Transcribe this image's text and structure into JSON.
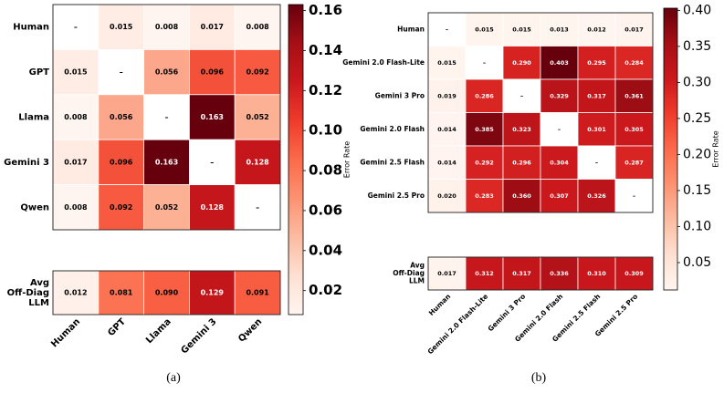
{
  "charts": [
    {
      "type": "heatmap",
      "caption": "(a)",
      "colormap": "Reds",
      "categories": [
        "Human",
        "GPT",
        "Llama",
        "Gemini 3",
        "Qwen"
      ],
      "values": [
        [
          null,
          0.015,
          0.008,
          0.017,
          0.008
        ],
        [
          0.015,
          null,
          0.056,
          0.096,
          0.092
        ],
        [
          0.008,
          0.056,
          null,
          0.163,
          0.052
        ],
        [
          0.017,
          0.096,
          0.163,
          null,
          0.128
        ],
        [
          0.008,
          0.092,
          0.052,
          0.128,
          null
        ]
      ],
      "value_labels": [
        [
          "–",
          "0.015",
          "0.008",
          "0.017",
          "0.008"
        ],
        [
          "0.015",
          "–",
          "0.056",
          "0.096",
          "0.092"
        ],
        [
          "0.008",
          "0.056",
          "–",
          "0.163",
          "0.052"
        ],
        [
          "0.017",
          "0.096",
          "0.163",
          "–",
          "0.128"
        ],
        [
          "0.008",
          "0.092",
          "0.052",
          "0.128",
          "–"
        ]
      ],
      "summary": {
        "label": [
          "Avg",
          "Off-Diag",
          "LLM"
        ],
        "values": [
          0.012,
          0.081,
          0.09,
          0.129,
          0.091
        ],
        "value_labels": [
          "0.012",
          "0.081",
          "0.090",
          "0.129",
          "0.091"
        ]
      },
      "colorbar": {
        "label": "Error Rate",
        "lim": [
          0.008,
          0.163
        ],
        "ticks": [
          0.02,
          0.04,
          0.06,
          0.08,
          {
            "value": 0.1,
            "label": "0.10"
          },
          0.12,
          0.14,
          0.16
        ]
      }
    },
    {
      "type": "heatmap",
      "caption": "(b)",
      "colormap": "Reds",
      "categories": [
        "Human",
        "Gemini 2.0 Flash-Lite",
        "Gemini 3 Pro",
        "Gemini 2.0 Flash",
        "Gemini 2.5 Flash",
        "Gemini 2.5 Pro"
      ],
      "values": [
        [
          null,
          0.015,
          0.015,
          0.013,
          0.012,
          0.017
        ],
        [
          0.015,
          null,
          0.29,
          0.403,
          0.295,
          0.284
        ],
        [
          0.019,
          0.286,
          null,
          0.329,
          0.317,
          0.361
        ],
        [
          0.014,
          0.385,
          0.323,
          null,
          0.301,
          0.305
        ],
        [
          0.014,
          0.292,
          0.296,
          0.304,
          null,
          0.287
        ],
        [
          0.02,
          0.283,
          0.36,
          0.307,
          0.326,
          null
        ]
      ],
      "value_labels": [
        [
          "–",
          "0.015",
          "0.015",
          "0.013",
          "0.012",
          "0.017"
        ],
        [
          "0.015",
          "–",
          "0.290",
          "0.403",
          "0.295",
          "0.284"
        ],
        [
          "0.019",
          "0.286",
          "–",
          "0.329",
          "0.317",
          "0.361"
        ],
        [
          "0.014",
          "0.385",
          "0.323",
          "–",
          "0.301",
          "0.305"
        ],
        [
          "0.014",
          "0.292",
          "0.296",
          "0.304",
          "–",
          "0.287"
        ],
        [
          "0.020",
          "0.283",
          "0.360",
          "0.307",
          "0.326",
          "–"
        ]
      ],
      "summary": {
        "label": [
          "Avg",
          "Off-Diag",
          "LLM"
        ],
        "values": [
          0.017,
          0.312,
          0.317,
          0.336,
          0.31,
          0.309
        ],
        "value_labels": [
          "0.017",
          "0.312",
          "0.317",
          "0.336",
          "0.310",
          "0.309"
        ]
      },
      "colorbar": {
        "label": "Error Rate",
        "lim": [
          0.012,
          0.403
        ],
        "ticks": [
          0.05,
          {
            "value": 0.1,
            "label": "0.10"
          },
          0.15,
          {
            "value": 0.2,
            "label": "0.20"
          },
          0.25,
          {
            "value": 0.3,
            "label": "0.30"
          },
          0.35,
          {
            "value": 0.4,
            "label": "0.40"
          }
        ]
      }
    }
  ]
}
